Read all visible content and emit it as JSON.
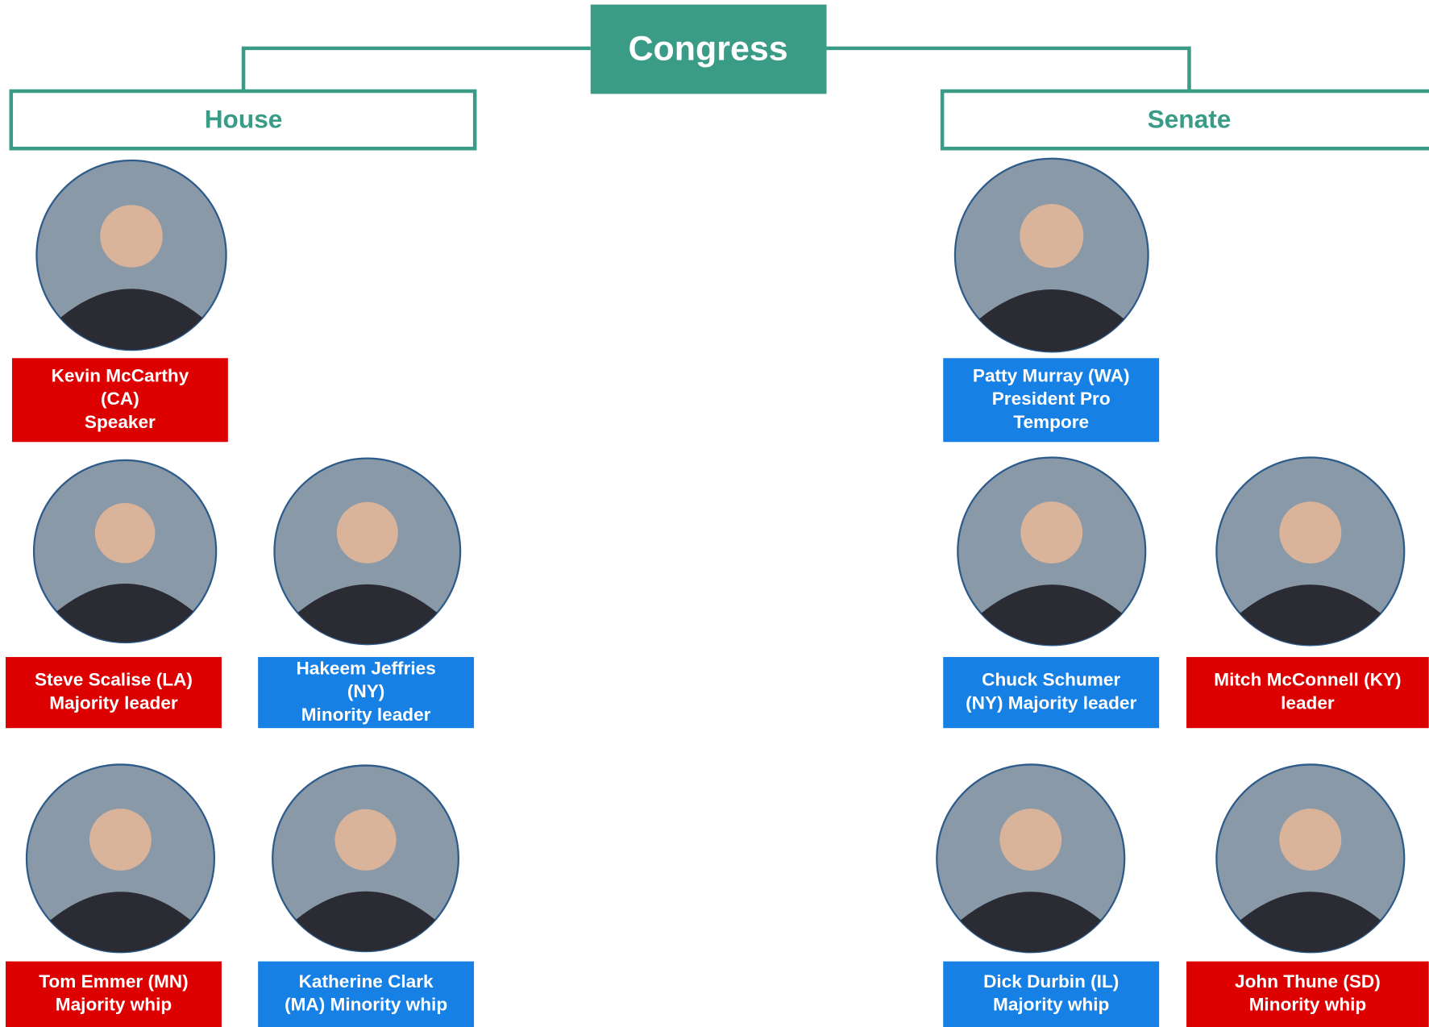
{
  "title": "Congress",
  "sections": [
    {
      "name": "House",
      "members": [
        {
          "lines": [
            "Kevin McCarthy",
            "(CA)",
            "Speaker"
          ],
          "color": "#dd0000"
        },
        {
          "lines": [
            "Steve Scalise (LA)",
            "Majority leader"
          ],
          "color": "#dd0000"
        },
        {
          "lines": [
            "Hakeem Jeffries",
            "(NY)",
            "Minority leader"
          ],
          "color": "#1680e4"
        },
        {
          "lines": [
            "Tom Emmer (MN)",
            "Majority whip"
          ],
          "color": "#dd0000"
        },
        {
          "lines": [
            "Katherine Clark",
            "(MA) Minority whip"
          ],
          "color": "#1680e4"
        }
      ]
    },
    {
      "name": "Senate",
      "members": [
        {
          "lines": [
            "Patty Murray (WA)",
            "President Pro",
            "Tempore"
          ],
          "color": "#1680e4"
        },
        {
          "lines": [
            "Chuck Schumer",
            "(NY) Majority leader"
          ],
          "color": "#1680e4"
        },
        {
          "lines": [
            "Mitch McConnell (KY)",
            "leader"
          ],
          "color": "#dd0000"
        },
        {
          "lines": [
            "Dick Durbin (IL)",
            "Majority whip"
          ],
          "color": "#1680e4"
        },
        {
          "lines": [
            "John Thune (SD)",
            "Minority whip"
          ],
          "color": "#dd0000"
        }
      ]
    }
  ]
}
